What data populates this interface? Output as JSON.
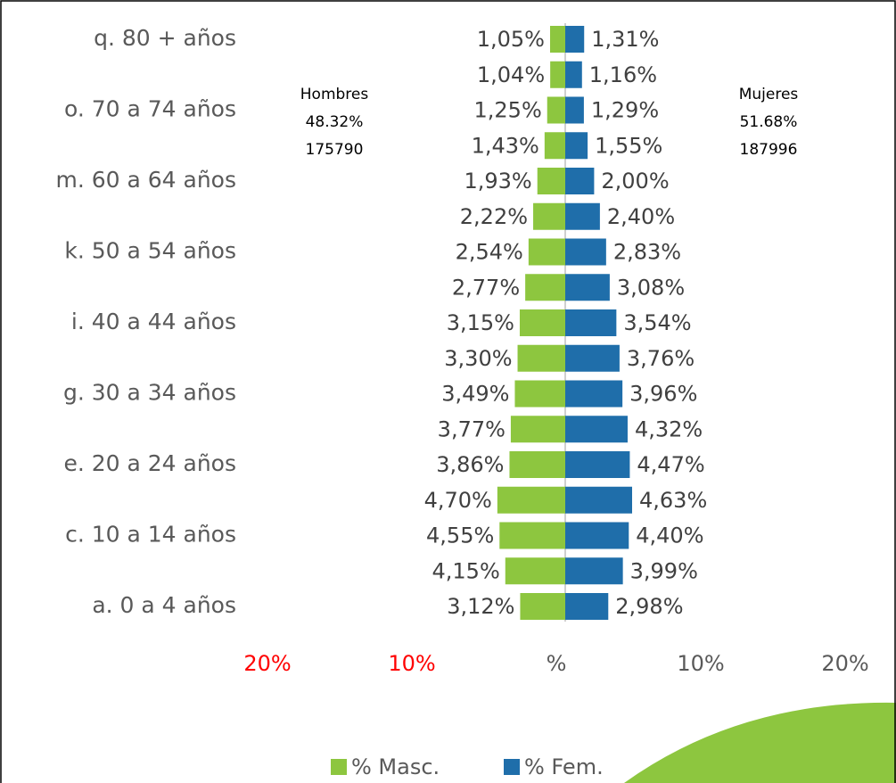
{
  "chart_data": {
    "type": "pyramid",
    "categories": [
      "a. 0 a 4 años",
      null,
      "c. 10 a 14 años",
      null,
      "e. 20 a 24 años",
      null,
      "g. 30 a 34 años",
      null,
      "i. 40 a 44 años",
      null,
      "k. 50 a 54 años",
      null,
      "m. 60 a 64 años",
      null,
      "o. 70 a 74 años",
      null,
      "q. 80 + años"
    ],
    "series": [
      {
        "name": "% Masc.",
        "color": "#8dc63f",
        "side": "left",
        "values": [
          3.12,
          4.15,
          4.55,
          4.7,
          3.86,
          3.77,
          3.49,
          3.3,
          3.15,
          2.77,
          2.54,
          2.22,
          1.93,
          1.43,
          1.25,
          1.04,
          1.05
        ],
        "value_labels": [
          "3,12%",
          "4,15%",
          "4,55%",
          "4,70%",
          "3,86%",
          "3,77%",
          "3,49%",
          "3,30%",
          "3,15%",
          "2,77%",
          "2,54%",
          "2,22%",
          "1,93%",
          "1,43%",
          "1,25%",
          "1,04%",
          "1,05%"
        ]
      },
      {
        "name": "% Fem.",
        "color": "#1f6eaa",
        "side": "right",
        "values": [
          2.98,
          3.99,
          4.4,
          4.63,
          4.47,
          4.32,
          3.96,
          3.76,
          3.54,
          3.08,
          2.83,
          2.4,
          2.0,
          1.55,
          1.29,
          1.16,
          1.31
        ],
        "value_labels": [
          "2,98%",
          "3,99%",
          "4,40%",
          "4,63%",
          "4,47%",
          "4,32%",
          "3,96%",
          "3,76%",
          "3,54%",
          "3,08%",
          "2,83%",
          "2,40%",
          "2,00%",
          "1,55%",
          "1,29%",
          "1,16%",
          "1,31%"
        ]
      }
    ],
    "xlim": [
      -20,
      20
    ],
    "xticks": [
      {
        "value": -20,
        "label": "20%"
      },
      {
        "value": -10,
        "label": "10%"
      },
      {
        "value": 0,
        "label": "%"
      },
      {
        "value": 10,
        "label": "10%"
      },
      {
        "value": 20,
        "label": "20%"
      }
    ],
    "negative_tick_color": "#ff0000",
    "annotations": [
      {
        "side": "left",
        "lines": [
          "Hombres",
          "48.32%",
          "175790"
        ]
      },
      {
        "side": "right",
        "lines": [
          "Mujeres",
          "51.68%",
          "187996"
        ]
      }
    ],
    "legend": "bottom"
  }
}
